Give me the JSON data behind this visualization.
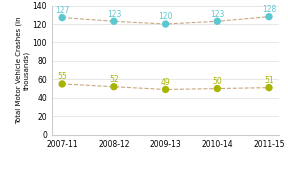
{
  "x_labels": [
    "2007-11",
    "2008-12",
    "2009-13",
    "2010-14",
    "2011-15"
  ],
  "ma_values": [
    127,
    123,
    120,
    123,
    128
  ],
  "boston_values": [
    55,
    52,
    49,
    50,
    51
  ],
  "ma_color": "#5bc8d0",
  "boston_color": "#a8b400",
  "line_color": "#c8a882",
  "ylabel": "Total Motor Vehicle Crashes (in\nthousands)",
  "ylim": [
    0,
    140
  ],
  "yticks": [
    0,
    20,
    40,
    60,
    80,
    100,
    120,
    140
  ],
  "marker_size": 28,
  "label_fontsize": 5.5,
  "axis_fontsize": 5.5,
  "ylabel_fontsize": 5.0,
  "legend_fontsize": 6.0
}
